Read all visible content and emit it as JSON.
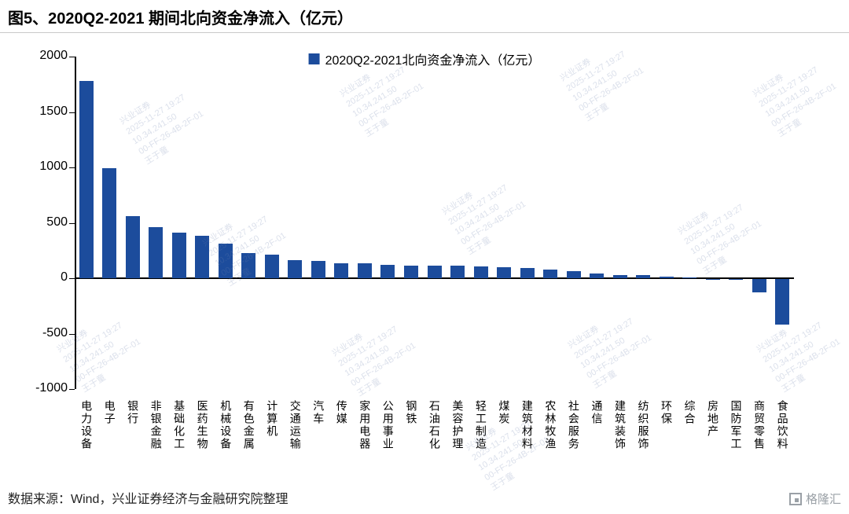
{
  "header": {
    "title": "图5、2020Q2-2021 期间北向资金净流入（亿元）"
  },
  "chart_data": {
    "type": "bar",
    "title": "图5、2020Q2-2021 期间北向资金净流入（亿元）",
    "legend": "2020Q2-2021北向资金净流入（亿元）",
    "legend_position": "top",
    "grid": false,
    "bar_color": "#1C4C9C",
    "ylim": [
      -1000,
      2000
    ],
    "yticks": [
      2000,
      1500,
      1000,
      500,
      0,
      -500,
      -1000
    ],
    "categories": [
      "电力设备",
      "电子",
      "银行",
      "非银金融",
      "基础化工",
      "医药生物",
      "机械设备",
      "有色金属",
      "计算机",
      "交通运输",
      "汽车",
      "传媒",
      "家用电器",
      "公用事业",
      "钢铁",
      "石油石化",
      "美容护理",
      "轻工制造",
      "煤炭",
      "建筑材料",
      "农林牧渔",
      "社会服务",
      "通信",
      "建筑装饰",
      "纺织服饰",
      "环保",
      "综合",
      "房地产",
      "国防军工",
      "商贸零售",
      "食品饮料"
    ],
    "values": [
      1780,
      990,
      560,
      460,
      410,
      385,
      310,
      230,
      215,
      160,
      155,
      135,
      135,
      120,
      115,
      110,
      110,
      105,
      100,
      95,
      80,
      65,
      40,
      30,
      25,
      12,
      8,
      -5,
      -10,
      -120,
      -410
    ],
    "xlabel": "",
    "ylabel": ""
  },
  "watermark": {
    "lines": [
      "兴业证券",
      "2025-11-27 19:27",
      "10.34.241.50",
      "00-FF-26-4B-2F-01",
      "王于童"
    ]
  },
  "footer": {
    "source": "数据来源：Wind，兴业证券经济与金融研究院整理"
  },
  "logo": {
    "text": "格隆汇"
  }
}
